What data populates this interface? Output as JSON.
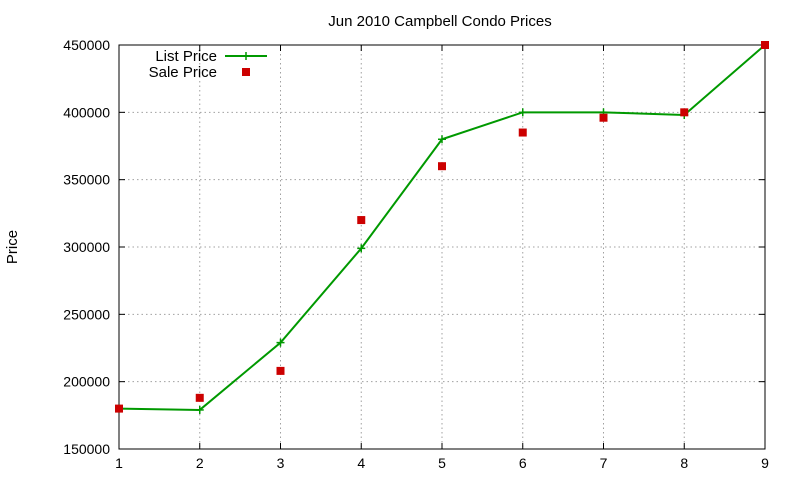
{
  "chart_data": {
    "type": "line",
    "title": "Jun 2010 Campbell Condo Prices",
    "xlabel": "",
    "ylabel": "Price",
    "xlim": [
      1,
      9
    ],
    "ylim": [
      150000,
      450000
    ],
    "x_ticks": [
      "1",
      "2",
      "3",
      "4",
      "5",
      "6",
      "7",
      "8",
      "9"
    ],
    "y_ticks": [
      "150000",
      "200000",
      "250000",
      "300000",
      "350000",
      "400000",
      "450000"
    ],
    "grid": true,
    "legend_position": "top-left",
    "series": [
      {
        "name": "List Price",
        "style": "line-with-plus-markers",
        "color": "#009900",
        "x": [
          1,
          2,
          3,
          4,
          5,
          6,
          7,
          8,
          9
        ],
        "values": [
          180000,
          179000,
          229000,
          299000,
          380000,
          400000,
          400000,
          398000,
          450000
        ]
      },
      {
        "name": "Sale Price",
        "style": "square-points",
        "color": "#cc0000",
        "x": [
          1,
          2,
          3,
          4,
          5,
          6,
          7,
          8,
          9
        ],
        "values": [
          180000,
          188000,
          208000,
          320000,
          360000,
          385000,
          396000,
          400000,
          450000
        ]
      }
    ]
  }
}
